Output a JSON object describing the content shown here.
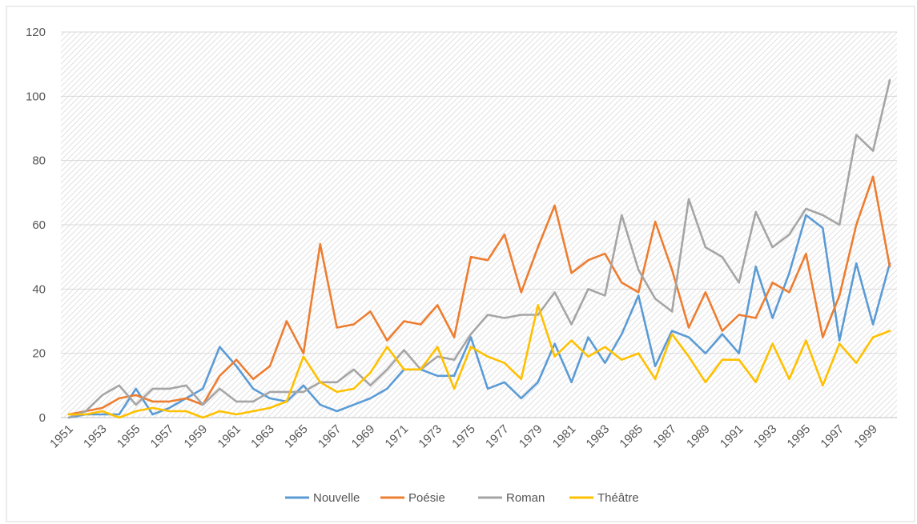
{
  "chart_data": {
    "type": "line",
    "title": "",
    "xlabel": "",
    "ylabel": "",
    "x": [
      1951,
      1952,
      1953,
      1954,
      1955,
      1956,
      1957,
      1958,
      1959,
      1960,
      1961,
      1962,
      1963,
      1964,
      1965,
      1966,
      1967,
      1968,
      1969,
      1970,
      1971,
      1972,
      1973,
      1974,
      1975,
      1976,
      1977,
      1978,
      1979,
      1980,
      1981,
      1982,
      1983,
      1984,
      1985,
      1986,
      1987,
      1988,
      1989,
      1990,
      1991,
      1992,
      1993,
      1994,
      1995,
      1996,
      1997,
      1998,
      1999,
      2000
    ],
    "x_tick_labels": [
      "1951",
      "1953",
      "1955",
      "1957",
      "1959",
      "1961",
      "1963",
      "1965",
      "1967",
      "1969",
      "1971",
      "1973",
      "1975",
      "1977",
      "1979",
      "1981",
      "1983",
      "1985",
      "1987",
      "1989",
      "1991",
      "1993",
      "1995",
      "1997",
      "1999"
    ],
    "y_ticks": [
      0,
      20,
      40,
      60,
      80,
      100,
      120
    ],
    "ylim": [
      0,
      120
    ],
    "grid": true,
    "legend_position": "bottom",
    "series": [
      {
        "name": "Nouvelle",
        "color": "#5B9BD5",
        "values": [
          0,
          1,
          1,
          1,
          9,
          1,
          3,
          6,
          9,
          22,
          16,
          9,
          6,
          5,
          10,
          4,
          2,
          4,
          6,
          9,
          15,
          15,
          13,
          13,
          25,
          9,
          11,
          6,
          11,
          23,
          11,
          25,
          17,
          26,
          38,
          16,
          27,
          25,
          20,
          26,
          20,
          47,
          31,
          45,
          63,
          59,
          24,
          48,
          29,
          48
        ]
      },
      {
        "name": "Poésie",
        "color": "#ED7D31",
        "values": [
          1,
          2,
          3,
          6,
          7,
          5,
          5,
          6,
          4,
          13,
          18,
          12,
          16,
          30,
          20,
          54,
          28,
          29,
          33,
          24,
          30,
          29,
          35,
          25,
          50,
          49,
          57,
          39,
          53,
          66,
          45,
          49,
          51,
          42,
          39,
          61,
          46,
          28,
          39,
          27,
          32,
          31,
          42,
          39,
          51,
          25,
          38,
          60,
          75,
          47
        ]
      },
      {
        "name": "Roman",
        "color": "#A5A5A5",
        "values": [
          0,
          2,
          7,
          10,
          4,
          9,
          9,
          10,
          4,
          9,
          5,
          5,
          8,
          8,
          8,
          11,
          11,
          15,
          10,
          15,
          21,
          15,
          19,
          18,
          26,
          32,
          31,
          32,
          32,
          39,
          29,
          40,
          38,
          63,
          46,
          37,
          33,
          68,
          53,
          50,
          42,
          64,
          53,
          57,
          65,
          63,
          60,
          88,
          83,
          105
        ]
      },
      {
        "name": "Théâtre",
        "color": "#FFC000",
        "values": [
          1,
          1,
          2,
          0,
          2,
          3,
          2,
          2,
          0,
          2,
          1,
          2,
          3,
          5,
          19,
          11,
          8,
          9,
          14,
          22,
          15,
          15,
          22,
          9,
          22,
          19,
          17,
          12,
          35,
          19,
          24,
          19,
          22,
          18,
          20,
          12,
          26,
          19,
          11,
          18,
          18,
          11,
          23,
          12,
          24,
          10,
          23,
          17,
          25,
          27
        ]
      }
    ]
  }
}
